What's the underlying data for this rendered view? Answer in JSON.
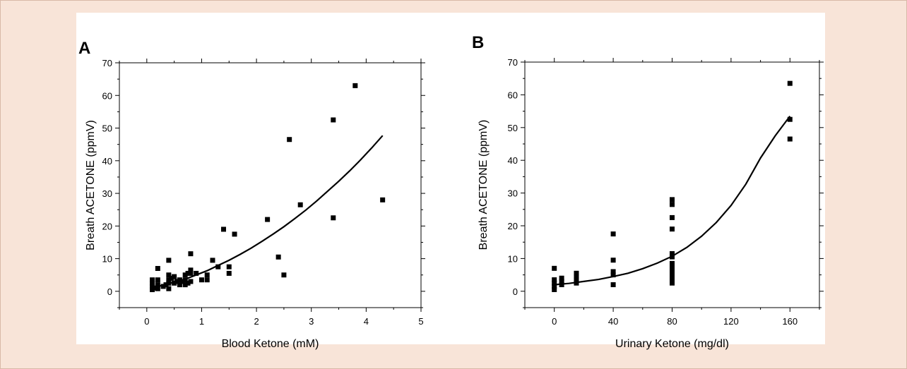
{
  "chart_data": [
    {
      "type": "scatter",
      "panel_label": "A",
      "xlabel": "Blood Ketone (mM)",
      "ylabel": "Breath ACETONE (ppmV)",
      "xlim": [
        -0.5,
        5
      ],
      "ylim": [
        -5,
        70
      ],
      "xticks": [
        0,
        1,
        2,
        3,
        4,
        5
      ],
      "yticks": [
        0,
        10,
        20,
        30,
        40,
        50,
        60,
        70
      ],
      "points": [
        [
          0.1,
          0.5
        ],
        [
          0.1,
          1.5
        ],
        [
          0.1,
          2.5
        ],
        [
          0.1,
          3.5
        ],
        [
          0.15,
          1
        ],
        [
          0.2,
          0.8
        ],
        [
          0.2,
          2
        ],
        [
          0.2,
          3.5
        ],
        [
          0.2,
          7
        ],
        [
          0.3,
          1.5
        ],
        [
          0.35,
          2
        ],
        [
          0.4,
          0.8
        ],
        [
          0.4,
          2.5
        ],
        [
          0.4,
          3.5
        ],
        [
          0.4,
          5
        ],
        [
          0.4,
          9.5
        ],
        [
          0.45,
          4
        ],
        [
          0.5,
          2.5
        ],
        [
          0.5,
          4.5
        ],
        [
          0.55,
          3
        ],
        [
          0.6,
          2
        ],
        [
          0.6,
          3.5
        ],
        [
          0.65,
          3
        ],
        [
          0.7,
          2
        ],
        [
          0.7,
          3.5
        ],
        [
          0.7,
          5
        ],
        [
          0.75,
          2.5
        ],
        [
          0.75,
          5.5
        ],
        [
          0.8,
          3
        ],
        [
          0.8,
          5.5
        ],
        [
          0.8,
          6.5
        ],
        [
          0.8,
          11.5
        ],
        [
          0.9,
          5.5
        ],
        [
          1.0,
          3.5
        ],
        [
          1.1,
          3.5
        ],
        [
          1.1,
          5
        ],
        [
          1.2,
          9.5
        ],
        [
          1.3,
          7.5
        ],
        [
          1.4,
          19
        ],
        [
          1.5,
          5.5
        ],
        [
          1.5,
          7.5
        ],
        [
          1.6,
          17.5
        ],
        [
          2.2,
          22
        ],
        [
          2.4,
          10.5
        ],
        [
          2.5,
          5
        ],
        [
          2.6,
          46.5
        ],
        [
          2.8,
          26.5
        ],
        [
          3.4,
          52.5
        ],
        [
          3.4,
          22.5
        ],
        [
          3.8,
          63
        ],
        [
          4.3,
          28
        ]
      ],
      "fit": {
        "x": [
          0.1,
          0.3,
          0.5,
          0.7,
          0.9,
          1.1,
          1.3,
          1.5,
          1.7,
          1.9,
          2.1,
          2.3,
          2.5,
          2.7,
          2.9,
          3.1,
          3.3,
          3.5,
          3.7,
          3.9,
          4.1,
          4.3
        ],
        "y": [
          1,
          1.9,
          2.8,
          3.7,
          5,
          6.3,
          7.9,
          9.5,
          11.3,
          13.2,
          15.3,
          17.5,
          19.8,
          22.3,
          24.9,
          27.7,
          30.7,
          33.7,
          36.9,
          40.3,
          43.9,
          47.7
        ]
      }
    },
    {
      "type": "scatter",
      "panel_label": "B",
      "xlabel": "Urinary Ketone (mg/dl)",
      "ylabel": "Breath ACETONE (ppmV)",
      "xlim": [
        -20,
        180
      ],
      "ylim": [
        -5,
        70
      ],
      "xticks": [
        0,
        40,
        80,
        120,
        160
      ],
      "yticks": [
        0,
        10,
        20,
        30,
        40,
        50,
        60,
        70
      ],
      "points": [
        [
          0,
          0.5
        ],
        [
          0,
          1.5
        ],
        [
          0,
          2.5
        ],
        [
          0,
          3.5
        ],
        [
          0,
          7
        ],
        [
          5,
          2
        ],
        [
          5,
          3
        ],
        [
          5,
          4
        ],
        [
          15,
          2.5
        ],
        [
          15,
          3.5
        ],
        [
          15,
          4.5
        ],
        [
          15,
          5.5
        ],
        [
          40,
          2
        ],
        [
          40,
          5
        ],
        [
          40,
          6
        ],
        [
          40,
          9.5
        ],
        [
          40,
          17.5
        ],
        [
          80,
          2.5
        ],
        [
          80,
          3.5
        ],
        [
          80,
          4.5
        ],
        [
          80,
          5.5
        ],
        [
          80,
          6.5
        ],
        [
          80,
          7.5
        ],
        [
          80,
          8.5
        ],
        [
          80,
          10.5
        ],
        [
          80,
          11.5
        ],
        [
          80,
          19
        ],
        [
          80,
          22.5
        ],
        [
          80,
          26.5
        ],
        [
          80,
          28
        ],
        [
          160,
          46.5
        ],
        [
          160,
          52.5
        ],
        [
          160,
          63.5
        ]
      ],
      "fit": {
        "x": [
          0,
          10,
          20,
          30,
          40,
          50,
          60,
          70,
          80,
          90,
          100,
          110,
          120,
          130,
          140,
          150,
          160
        ],
        "y": [
          2,
          2.4,
          3,
          3.6,
          4.5,
          5.5,
          6.9,
          8.6,
          10.7,
          13.4,
          16.8,
          21,
          26.2,
          32.7,
          40.7,
          47.5,
          53.5
        ]
      }
    }
  ]
}
